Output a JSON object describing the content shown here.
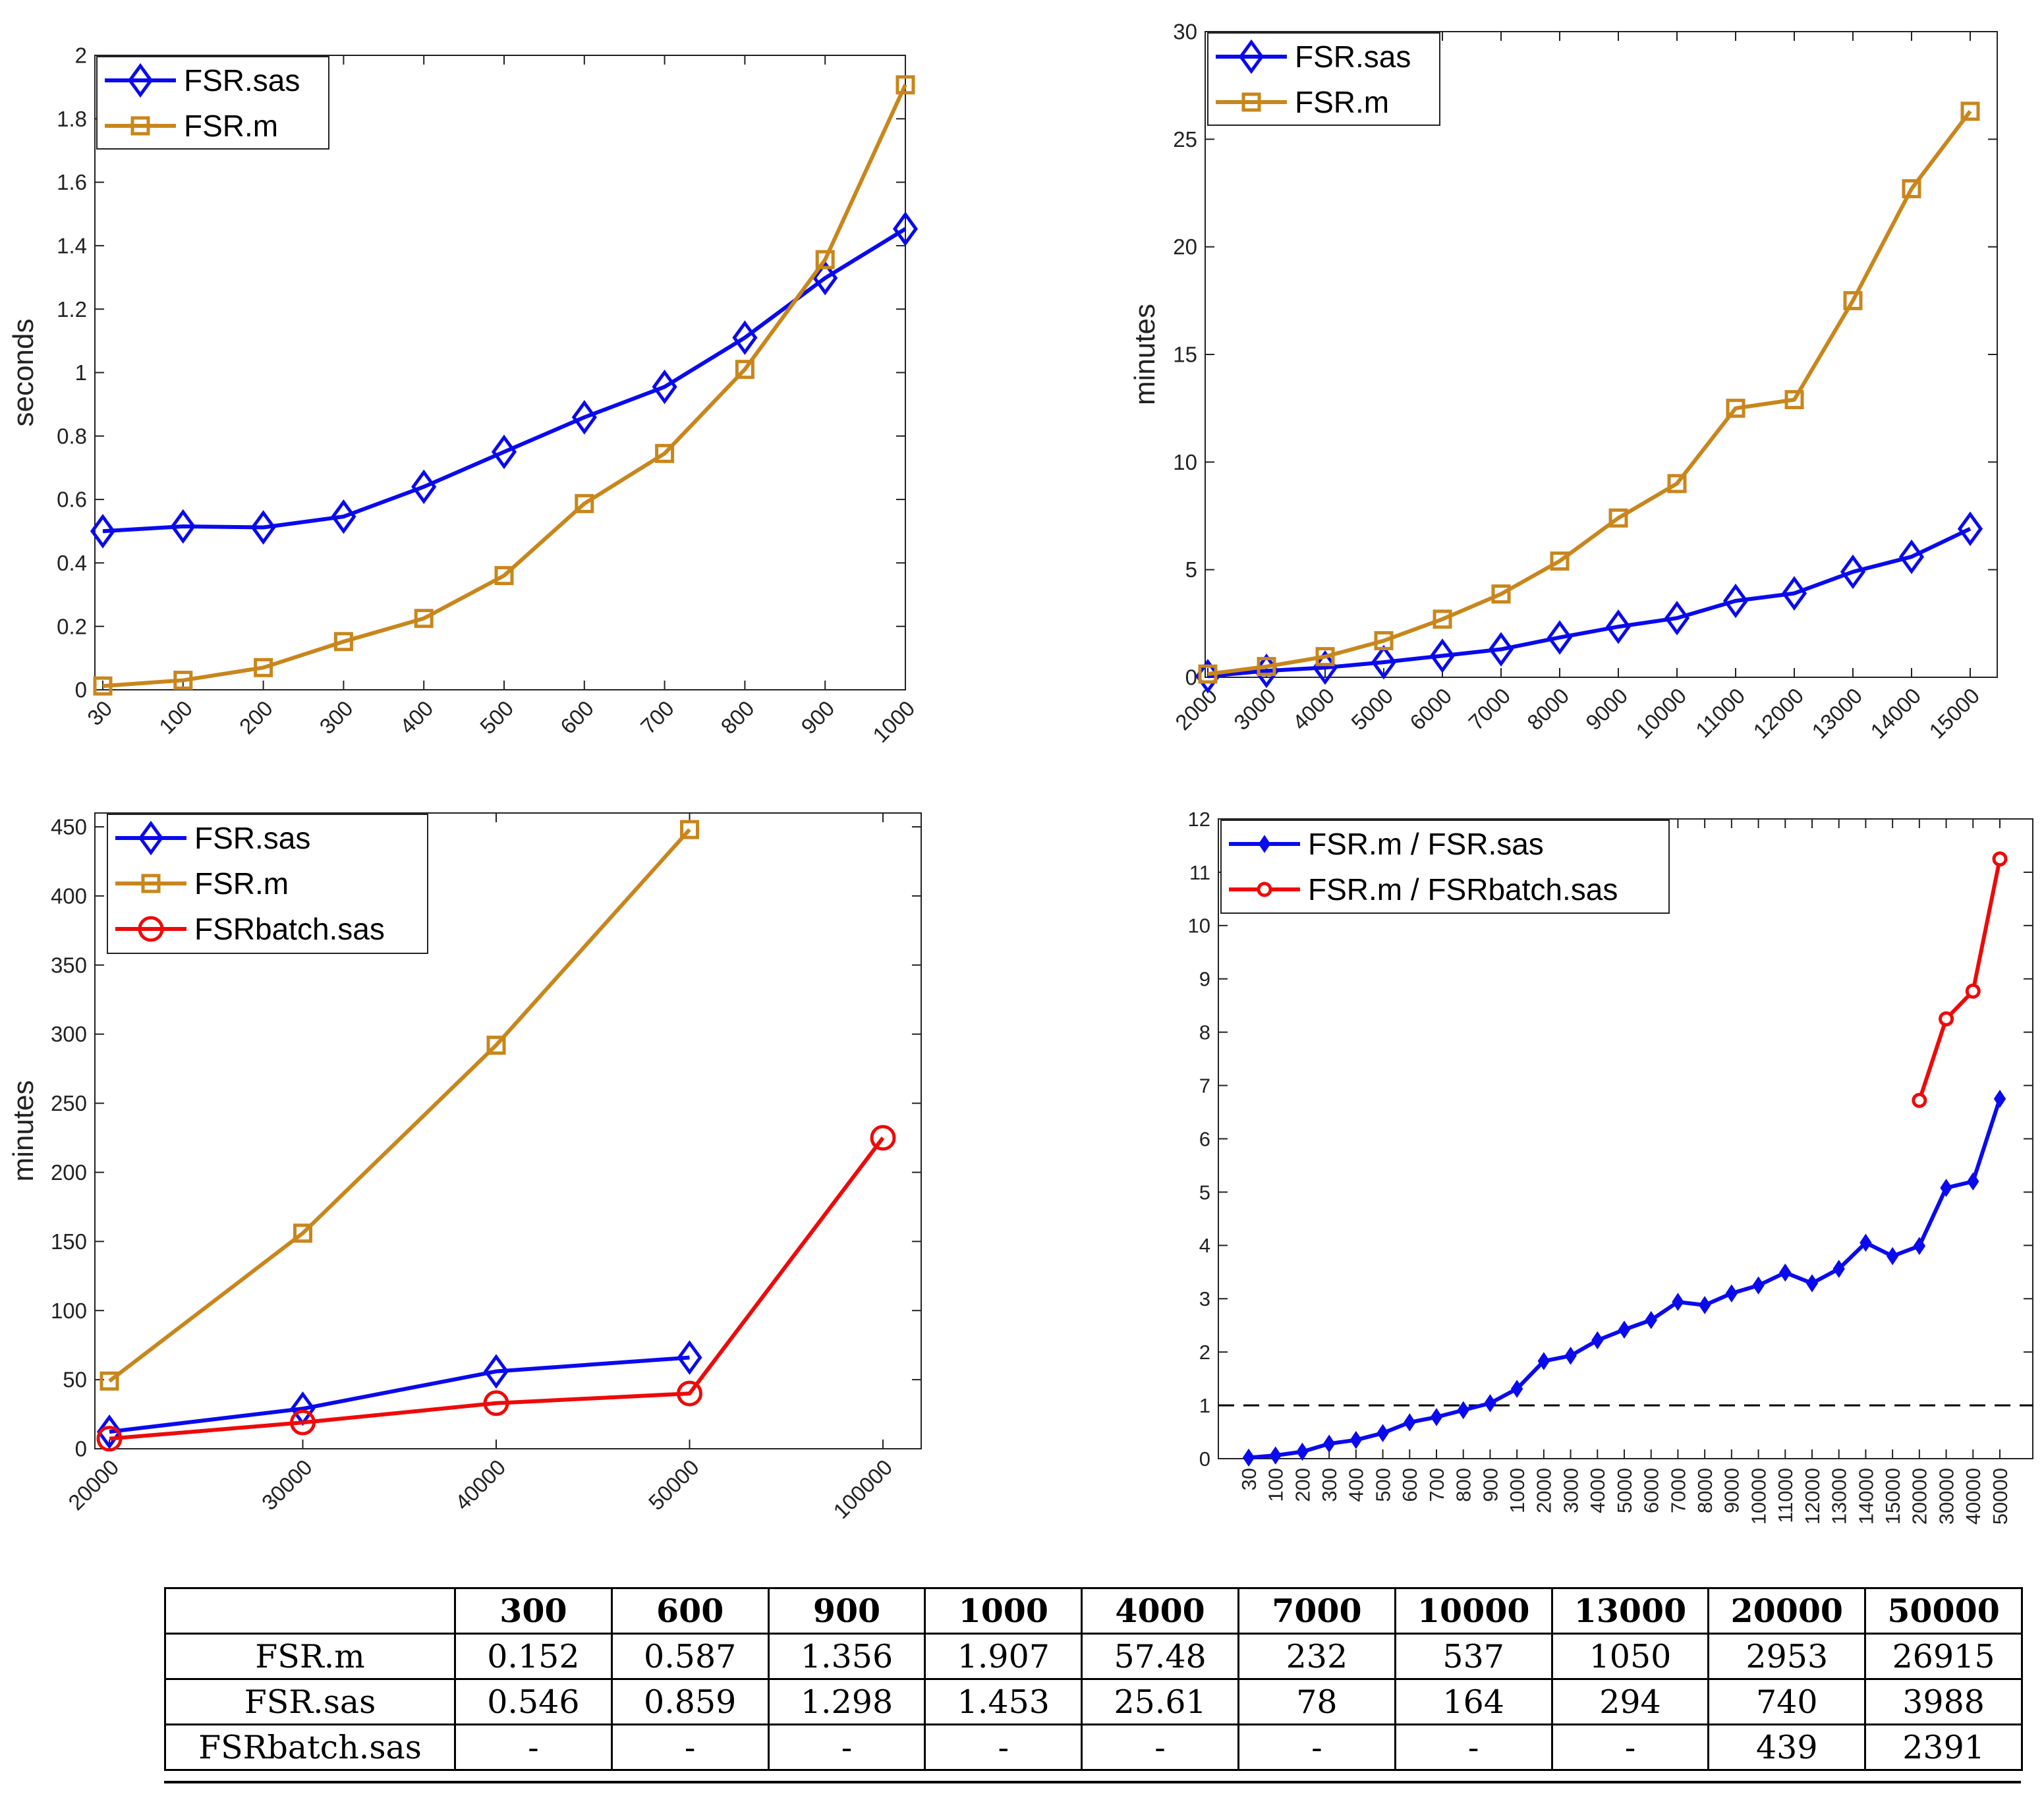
{
  "colors": {
    "blue": "#0a0aee",
    "gold": "#c8861c",
    "red": "#ee0a0a",
    "axis": "#222222",
    "dashed": "#000000"
  },
  "chart_data": [
    {
      "id": "top-left",
      "type": "line",
      "title": "",
      "xlabel": "",
      "ylabel": "seconds",
      "categories": [
        "30",
        "100",
        "200",
        "300",
        "400",
        "500",
        "600",
        "700",
        "800",
        "900",
        "1000"
      ],
      "ylim": [
        0,
        2
      ],
      "yticks": [
        0,
        0.2,
        0.4,
        0.6,
        0.8,
        1,
        1.2,
        1.4,
        1.6,
        1.8,
        2
      ],
      "ytick_labels": [
        "0",
        "0.2",
        "0.4",
        "0.6",
        "0.8",
        "1",
        "1.2",
        "1.4",
        "1.6",
        "1.8",
        "2"
      ],
      "legend_position": "top-left",
      "series": [
        {
          "name": "FSR.sas",
          "marker": "diamond",
          "color": "#0a0aee",
          "values": [
            0.5,
            0.515,
            0.512,
            0.546,
            0.64,
            0.75,
            0.859,
            0.955,
            1.11,
            1.298,
            1.453
          ]
        },
        {
          "name": "FSR.m",
          "marker": "square",
          "color": "#c8861c",
          "values": [
            0.012,
            0.03,
            0.07,
            0.152,
            0.225,
            0.36,
            0.587,
            0.745,
            1.01,
            1.356,
            1.907
          ]
        }
      ]
    },
    {
      "id": "top-right",
      "type": "line",
      "title": "",
      "xlabel": "",
      "ylabel": "minutes",
      "categories": [
        "2000",
        "3000",
        "4000",
        "5000",
        "6000",
        "7000",
        "8000",
        "9000",
        "10000",
        "11000",
        "12000",
        "13000",
        "14000",
        "15000"
      ],
      "ylim": [
        0,
        30
      ],
      "yticks": [
        0,
        5,
        10,
        15,
        20,
        25,
        30
      ],
      "ytick_labels": [
        "0",
        "5",
        "10",
        "15",
        "20",
        "25",
        "30"
      ],
      "legend_position": "top-left",
      "series": [
        {
          "name": "FSR.sas",
          "marker": "diamond",
          "color": "#0a0aee",
          "values": [
            0.05,
            0.3,
            0.45,
            0.7,
            1.0,
            1.3,
            1.85,
            2.35,
            2.75,
            3.55,
            3.9,
            4.9,
            5.6,
            6.9
          ]
        },
        {
          "name": "FSR.m",
          "marker": "square",
          "color": "#c8861c",
          "values": [
            0.15,
            0.5,
            0.96,
            1.7,
            2.7,
            3.87,
            5.4,
            7.4,
            9.0,
            12.5,
            12.9,
            17.5,
            22.7,
            26.3
          ]
        }
      ]
    },
    {
      "id": "bottom-left",
      "type": "line",
      "title": "",
      "xlabel": "",
      "ylabel": "minutes",
      "categories": [
        "20000",
        "30000",
        "40000",
        "50000",
        "100000"
      ],
      "ylim": [
        0,
        460
      ],
      "yticks": [
        0,
        50,
        100,
        150,
        200,
        250,
        300,
        350,
        400,
        450
      ],
      "ytick_labels": [
        "0",
        "50",
        "100",
        "150",
        "200",
        "250",
        "300",
        "350",
        "400",
        "450"
      ],
      "legend_position": "top-left",
      "series": [
        {
          "name": "FSR.sas",
          "marker": "diamond",
          "color": "#0a0aee",
          "values": [
            12.3,
            29,
            56,
            66,
            null
          ]
        },
        {
          "name": "FSR.m",
          "marker": "square",
          "color": "#c8861c",
          "values": [
            49,
            156,
            292,
            448,
            null
          ]
        },
        {
          "name": "FSRbatch.sas",
          "marker": "circle",
          "color": "#ee0a0a",
          "values": [
            7.3,
            19,
            33,
            40,
            225
          ]
        }
      ]
    },
    {
      "id": "bottom-right",
      "type": "line",
      "title": "",
      "xlabel": "",
      "ylabel": "",
      "categories": [
        "30",
        "100",
        "200",
        "300",
        "400",
        "500",
        "600",
        "700",
        "800",
        "900",
        "1000",
        "2000",
        "3000",
        "4000",
        "5000",
        "6000",
        "7000",
        "8000",
        "9000",
        "10000",
        "11000",
        "12000",
        "13000",
        "14000",
        "15000",
        "20000",
        "30000",
        "40000",
        "50000"
      ],
      "ylim": [
        0,
        12
      ],
      "yticks": [
        0,
        1,
        2,
        3,
        4,
        5,
        6,
        7,
        8,
        9,
        10,
        11,
        12
      ],
      "ytick_labels": [
        "0",
        "1",
        "2",
        "3",
        "4",
        "5",
        "6",
        "7",
        "8",
        "9",
        "10",
        "11",
        "12"
      ],
      "reference_line": 1,
      "legend_position": "top-left",
      "series": [
        {
          "name": "FSR.m / FSR.sas",
          "marker": "small-diamond",
          "color": "#0a0aee",
          "values": [
            0.02,
            0.06,
            0.13,
            0.28,
            0.35,
            0.48,
            0.68,
            0.78,
            0.91,
            1.04,
            1.31,
            1.83,
            1.93,
            2.22,
            2.42,
            2.6,
            2.94,
            2.88,
            3.1,
            3.25,
            3.49,
            3.29,
            3.56,
            4.05,
            3.8,
            3.99,
            5.08,
            5.2,
            6.75
          ]
        },
        {
          "name": "FSR.m / FSRbatch.sas",
          "marker": "small-circle",
          "color": "#ee0a0a",
          "values": [
            null,
            null,
            null,
            null,
            null,
            null,
            null,
            null,
            null,
            null,
            null,
            null,
            null,
            null,
            null,
            null,
            null,
            null,
            null,
            null,
            null,
            null,
            null,
            null,
            null,
            6.72,
            8.25,
            8.77,
            11.25
          ]
        }
      ]
    }
  ],
  "table": {
    "headers": [
      "",
      "300",
      "600",
      "900",
      "1000",
      "4000",
      "7000",
      "10000",
      "13000",
      "20000",
      "50000"
    ],
    "rows": [
      {
        "label": "FSR.m",
        "values": [
          "0.152",
          "0.587",
          "1.356",
          "1.907",
          "57.48",
          "232",
          "537",
          "1050",
          "2953",
          "26915"
        ]
      },
      {
        "label": "FSR.sas",
        "values": [
          "0.546",
          "0.859",
          "1.298",
          "1.453",
          "25.61",
          "78",
          "164",
          "294",
          "740",
          "3988"
        ]
      },
      {
        "label": "FSRbatch.sas",
        "values": [
          "-",
          "-",
          "-",
          "-",
          "-",
          "-",
          "-",
          "-",
          "439",
          "2391"
        ]
      }
    ]
  }
}
